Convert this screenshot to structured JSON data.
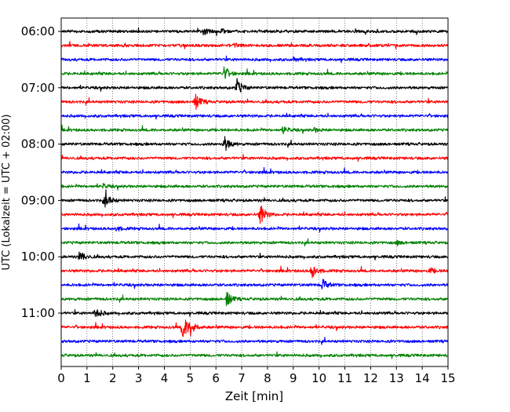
{
  "chart_data": {
    "type": "seismic_helicorder",
    "xlabel": "Zeit  [min]",
    "ylabel": "UTC (Lokalzeit = UTC + 02:00)",
    "xlim": [
      0,
      15
    ],
    "x_ticks": [
      0,
      1,
      2,
      3,
      4,
      5,
      6,
      7,
      8,
      9,
      10,
      11,
      12,
      13,
      14,
      15
    ],
    "y_ticks": [
      "06:00",
      "07:00",
      "08:00",
      "09:00",
      "10:00",
      "11:00"
    ],
    "grid": "vertical dotted lines at each minute",
    "colors": [
      "#000000",
      "#ff0000",
      "#0000ff",
      "#008000"
    ],
    "trace_interval_minutes": 15,
    "start_time": "06:00",
    "series": [
      {
        "time": "06:00",
        "color": "#000000",
        "events": [
          {
            "t": 5.5,
            "amp": 0.5
          },
          {
            "t": 6.2,
            "amp": 0.3
          }
        ]
      },
      {
        "time": "06:15",
        "color": "#ff0000",
        "events": [
          {
            "t": 6.7,
            "amp": 0.35
          }
        ]
      },
      {
        "time": "06:30",
        "color": "#0000ff",
        "events": [
          {
            "t": 9.0,
            "amp": 0.3
          }
        ]
      },
      {
        "time": "06:45",
        "color": "#008000",
        "events": [
          {
            "t": 6.3,
            "amp": 1.0
          }
        ]
      },
      {
        "time": "07:00",
        "color": "#000000",
        "events": [
          {
            "t": 6.8,
            "amp": 1.3
          }
        ]
      },
      {
        "time": "07:15",
        "color": "#ff0000",
        "events": [
          {
            "t": 5.2,
            "amp": 1.2
          }
        ]
      },
      {
        "time": "07:30",
        "color": "#0000ff",
        "events": []
      },
      {
        "time": "07:45",
        "color": "#008000",
        "events": [
          {
            "t": 8.6,
            "amp": 0.5
          },
          {
            "t": 9.8,
            "amp": 0.3
          }
        ]
      },
      {
        "time": "08:00",
        "color": "#000000",
        "events": [
          {
            "t": 6.3,
            "amp": 1.3
          }
        ]
      },
      {
        "time": "08:15",
        "color": "#ff0000",
        "events": []
      },
      {
        "time": "08:30",
        "color": "#0000ff",
        "events": []
      },
      {
        "time": "08:45",
        "color": "#008000",
        "events": [
          {
            "t": 1.6,
            "amp": 0.3
          }
        ]
      },
      {
        "time": "09:00",
        "color": "#000000",
        "events": [
          {
            "t": 1.7,
            "amp": 1.2
          }
        ]
      },
      {
        "time": "09:15",
        "color": "#ff0000",
        "events": [
          {
            "t": 7.7,
            "amp": 1.7
          }
        ]
      },
      {
        "time": "09:30",
        "color": "#0000ff",
        "events": [
          {
            "t": 2.1,
            "amp": 0.4
          }
        ]
      },
      {
        "time": "09:45",
        "color": "#008000",
        "events": [
          {
            "t": 13.0,
            "amp": 0.3
          }
        ]
      },
      {
        "time": "10:00",
        "color": "#000000",
        "events": [
          {
            "t": 0.7,
            "amp": 1.0
          }
        ]
      },
      {
        "time": "10:15",
        "color": "#ff0000",
        "events": [
          {
            "t": 9.7,
            "amp": 1.2
          },
          {
            "t": 14.3,
            "amp": 0.35
          }
        ]
      },
      {
        "time": "10:30",
        "color": "#0000ff",
        "events": [
          {
            "t": 10.1,
            "amp": 0.9
          }
        ]
      },
      {
        "time": "10:45",
        "color": "#008000",
        "events": [
          {
            "t": 6.4,
            "amp": 1.2
          }
        ]
      },
      {
        "time": "11:00",
        "color": "#000000",
        "events": [
          {
            "t": 1.3,
            "amp": 1.0
          }
        ]
      },
      {
        "time": "11:15",
        "color": "#ff0000",
        "events": [
          {
            "t": 4.7,
            "amp": 2.0
          },
          {
            "t": 5.0,
            "amp": 1.0
          }
        ]
      },
      {
        "time": "11:30",
        "color": "#0000ff",
        "events": []
      },
      {
        "time": "11:45",
        "color": "#008000",
        "events": []
      }
    ]
  }
}
